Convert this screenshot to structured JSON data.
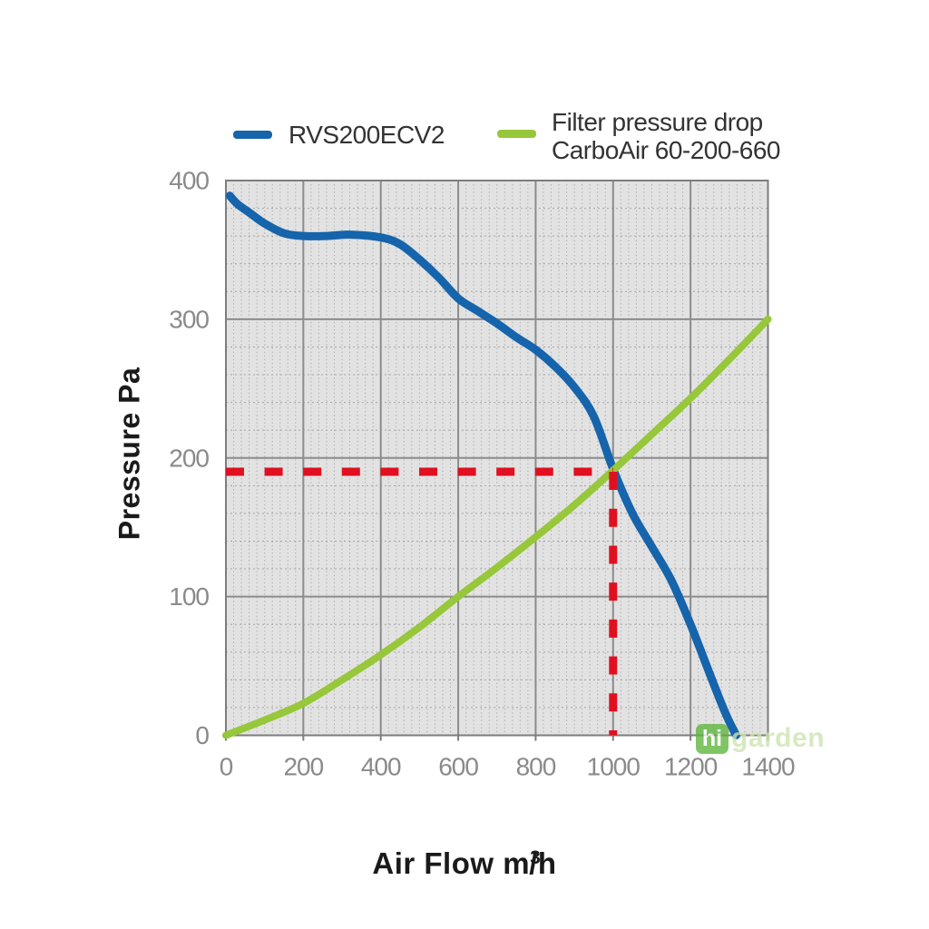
{
  "legend": {
    "items": [
      {
        "label": "RVS200ECV2"
      },
      {
        "label_line1": "Filter pressure drop",
        "label_line2": "CarboAir 60-200-660"
      }
    ]
  },
  "axes": {
    "y_title": "Pressure Pa",
    "x_title_prefix": "Air Flow m",
    "x_title_sup": "3",
    "x_title_suffix": "/h"
  },
  "watermark": {
    "badge": "hi",
    "text": "garden"
  },
  "chart_data": {
    "type": "line",
    "xlabel": "Air Flow m³/h",
    "ylabel": "Pressure Pa",
    "xlim": [
      0,
      1400
    ],
    "ylim": [
      0,
      400
    ],
    "x_ticks": [
      0,
      200,
      400,
      600,
      800,
      1000,
      1200,
      1400
    ],
    "y_ticks": [
      0,
      100,
      200,
      300,
      400
    ],
    "x_minor_step": 20,
    "y_minor_step": 20,
    "grid": true,
    "legend_position": "top",
    "plot_background": "#e2e2e2",
    "series": [
      {
        "name": "RVS200ECV2",
        "color": "#1564ac",
        "points": [
          [
            10,
            389
          ],
          [
            30,
            383
          ],
          [
            60,
            377
          ],
          [
            100,
            369
          ],
          [
            150,
            362
          ],
          [
            200,
            360
          ],
          [
            260,
            360
          ],
          [
            320,
            361
          ],
          [
            400,
            359
          ],
          [
            450,
            354
          ],
          [
            500,
            343
          ],
          [
            550,
            330
          ],
          [
            600,
            315
          ],
          [
            650,
            306
          ],
          [
            700,
            297
          ],
          [
            750,
            287
          ],
          [
            800,
            278
          ],
          [
            850,
            266
          ],
          [
            900,
            251
          ],
          [
            950,
            230
          ],
          [
            1000,
            192
          ],
          [
            1050,
            160
          ],
          [
            1100,
            136
          ],
          [
            1150,
            112
          ],
          [
            1200,
            80
          ],
          [
            1250,
            44
          ],
          [
            1290,
            16
          ],
          [
            1318,
            0
          ]
        ]
      },
      {
        "name": "Filter pressure drop CarboAir 60-200-660",
        "color": "#97c73a",
        "points": [
          [
            0,
            0
          ],
          [
            100,
            11
          ],
          [
            200,
            23
          ],
          [
            300,
            40
          ],
          [
            400,
            58
          ],
          [
            500,
            78
          ],
          [
            600,
            100
          ],
          [
            700,
            121
          ],
          [
            800,
            143
          ],
          [
            900,
            166
          ],
          [
            1000,
            191
          ],
          [
            1100,
            217
          ],
          [
            1200,
            243
          ],
          [
            1300,
            271
          ],
          [
            1400,
            300
          ]
        ]
      }
    ],
    "annotation": {
      "style": "dashed-crosshair",
      "color": "#e01020",
      "x": 1000,
      "y": 190
    }
  }
}
